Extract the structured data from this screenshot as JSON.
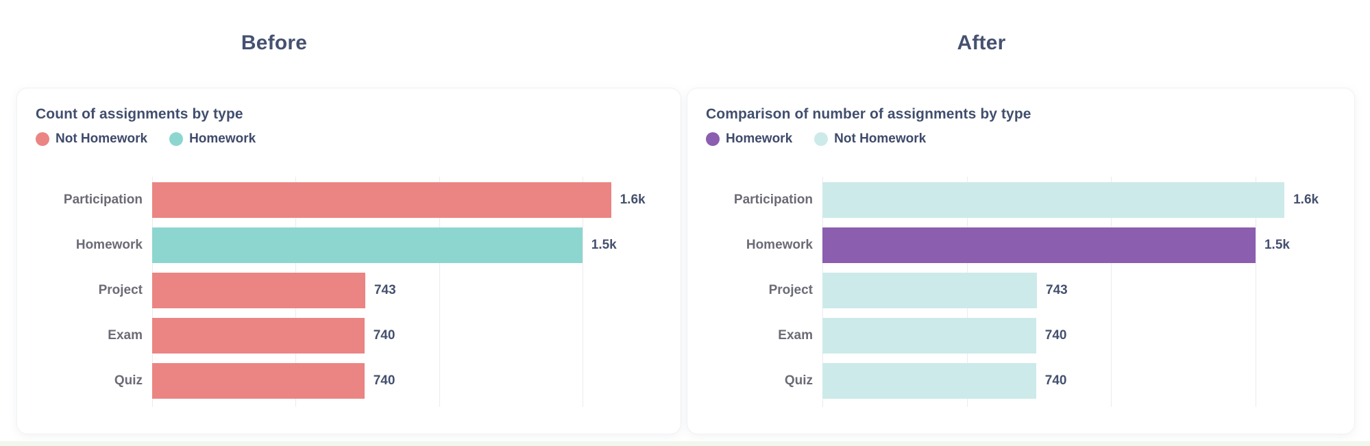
{
  "page": {
    "before_heading": "Before",
    "after_heading": "After",
    "heading_color": "#465170",
    "text_color_dark": "#44506E",
    "text_color_gray": "#6B6B76"
  },
  "chart_data": [
    {
      "type": "bar",
      "orientation": "horizontal",
      "title": "Count of assignments by type",
      "legend": [
        {
          "label": "Not Homework",
          "color": "#EA8583"
        },
        {
          "label": "Homework",
          "color": "#8DD6D0"
        }
      ],
      "legend_position": "top-left",
      "categories": [
        "Participation",
        "Homework",
        "Project",
        "Exam",
        "Quiz"
      ],
      "values": [
        1600,
        1500,
        743,
        740,
        740
      ],
      "value_labels": [
        "1.6k",
        "1.5k",
        "743",
        "740",
        "740"
      ],
      "bar_colors": [
        "#EA8583",
        "#8DD6D0",
        "#EA8583",
        "#EA8583",
        "#EA8583"
      ],
      "xlabel": "",
      "ylabel": "",
      "xlim": [
        0,
        1600
      ],
      "gridline_values": [
        0,
        500,
        1000,
        1500
      ],
      "grid": true
    },
    {
      "type": "bar",
      "orientation": "horizontal",
      "title": "Comparison of number of assignments by type",
      "legend": [
        {
          "label": "Homework",
          "color": "#8B5EAF"
        },
        {
          "label": "Not Homework",
          "color": "#CCEAE9"
        }
      ],
      "legend_position": "top-left",
      "categories": [
        "Participation",
        "Homework",
        "Project",
        "Exam",
        "Quiz"
      ],
      "values": [
        1600,
        1500,
        743,
        740,
        740
      ],
      "value_labels": [
        "1.6k",
        "1.5k",
        "743",
        "740",
        "740"
      ],
      "bar_colors": [
        "#CCEAE9",
        "#8B5EAF",
        "#CCEAE9",
        "#CCEAE9",
        "#CCEAE9"
      ],
      "xlabel": "",
      "ylabel": "",
      "xlim": [
        0,
        1600
      ],
      "gridline_values": [
        0,
        500,
        1000,
        1500
      ],
      "grid": true
    }
  ]
}
